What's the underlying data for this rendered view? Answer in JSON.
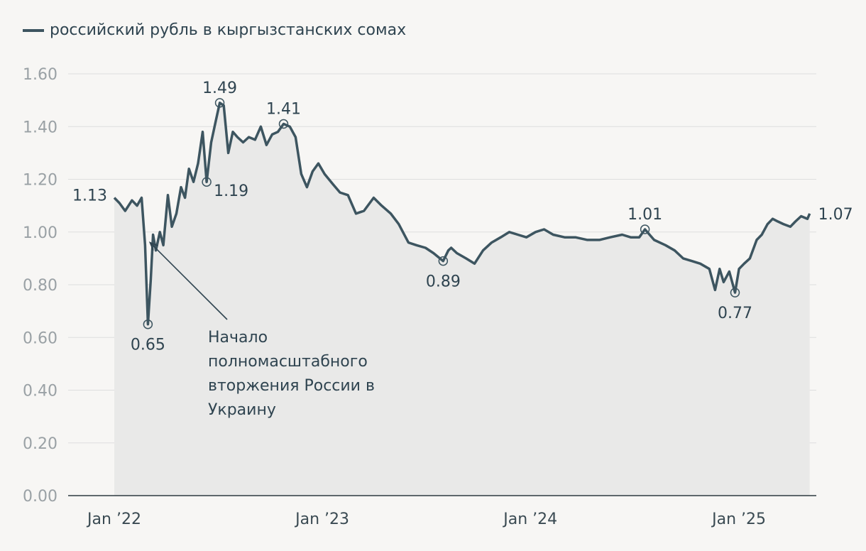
{
  "chart_data": {
    "type": "line",
    "title": "",
    "xlabel": "",
    "ylabel": "",
    "ylim": [
      0,
      1.6
    ],
    "yticks": [
      "0.00",
      "0.20",
      "0.40",
      "0.60",
      "0.80",
      "1.00",
      "1.20",
      "1.40",
      "1.60"
    ],
    "xticks": [
      {
        "label": "Jan ’22",
        "x": "2022-01-01"
      },
      {
        "label": "Jan ’23",
        "x": "2023-01-01"
      },
      {
        "label": "Jan ’24",
        "x": "2024-01-01"
      },
      {
        "label": "Jan ’25",
        "x": "2025-01-01"
      }
    ],
    "grid": true,
    "legend": "top-left",
    "series": [
      {
        "name": "российский рубль в кыргызстанских сомах",
        "color": "#3d5560",
        "x": [
          "2022-01-01",
          "2022-01-10",
          "2022-01-20",
          "2022-02-01",
          "2022-02-10",
          "2022-02-18",
          "2022-02-24",
          "2022-03-01",
          "2022-03-06",
          "2022-03-10",
          "2022-03-15",
          "2022-03-22",
          "2022-03-28",
          "2022-04-05",
          "2022-04-12",
          "2022-04-20",
          "2022-04-28",
          "2022-05-05",
          "2022-05-12",
          "2022-05-20",
          "2022-05-28",
          "2022-06-05",
          "2022-06-12",
          "2022-06-20",
          "2022-06-28",
          "2022-07-05",
          "2022-07-12",
          "2022-07-20",
          "2022-07-28",
          "2022-08-05",
          "2022-08-15",
          "2022-08-25",
          "2022-09-05",
          "2022-09-15",
          "2022-09-25",
          "2022-10-05",
          "2022-10-15",
          "2022-10-25",
          "2022-11-05",
          "2022-11-15",
          "2022-11-25",
          "2022-12-05",
          "2022-12-15",
          "2022-12-25",
          "2023-01-05",
          "2023-01-20",
          "2023-02-01",
          "2023-02-15",
          "2023-03-01",
          "2023-03-15",
          "2023-04-01",
          "2023-04-15",
          "2023-05-01",
          "2023-05-15",
          "2023-06-01",
          "2023-06-15",
          "2023-07-01",
          "2023-07-15",
          "2023-08-01",
          "2023-08-10",
          "2023-08-15",
          "2023-08-25",
          "2023-09-10",
          "2023-09-25",
          "2023-10-10",
          "2023-10-25",
          "2023-11-10",
          "2023-11-25",
          "2023-12-10",
          "2023-12-25",
          "2024-01-10",
          "2024-01-25",
          "2024-02-10",
          "2024-03-01",
          "2024-03-20",
          "2024-04-10",
          "2024-05-01",
          "2024-05-20",
          "2024-06-10",
          "2024-06-25",
          "2024-07-10",
          "2024-07-20",
          "2024-08-05",
          "2024-08-25",
          "2024-09-10",
          "2024-09-25",
          "2024-10-10",
          "2024-10-25",
          "2024-11-10",
          "2024-11-20",
          "2024-11-28",
          "2024-12-05",
          "2024-12-15",
          "2024-12-25",
          "2025-01-01",
          "2025-01-10",
          "2025-01-20",
          "2025-02-01",
          "2025-02-10",
          "2025-02-20",
          "2025-03-01",
          "2025-03-10",
          "2025-03-20",
          "2025-04-01",
          "2025-04-10",
          "2025-04-20",
          "2025-05-01",
          "2025-05-05"
        ],
        "values": [
          1.13,
          1.11,
          1.08,
          1.12,
          1.1,
          1.13,
          0.95,
          0.65,
          0.82,
          0.99,
          0.93,
          1.0,
          0.95,
          1.14,
          1.02,
          1.07,
          1.17,
          1.13,
          1.24,
          1.19,
          1.26,
          1.38,
          1.19,
          1.34,
          1.42,
          1.49,
          1.48,
          1.3,
          1.38,
          1.36,
          1.34,
          1.36,
          1.35,
          1.4,
          1.33,
          1.37,
          1.38,
          1.41,
          1.4,
          1.36,
          1.22,
          1.17,
          1.23,
          1.26,
          1.22,
          1.18,
          1.15,
          1.14,
          1.07,
          1.08,
          1.13,
          1.1,
          1.07,
          1.03,
          0.96,
          0.95,
          0.94,
          0.92,
          0.89,
          0.93,
          0.94,
          0.92,
          0.9,
          0.88,
          0.93,
          0.96,
          0.98,
          1.0,
          0.99,
          0.98,
          1.0,
          1.01,
          0.99,
          0.98,
          0.98,
          0.97,
          0.97,
          0.98,
          0.99,
          0.98,
          0.98,
          1.01,
          0.97,
          0.95,
          0.93,
          0.9,
          0.89,
          0.88,
          0.86,
          0.78,
          0.86,
          0.81,
          0.85,
          0.77,
          0.86,
          0.88,
          0.9,
          0.97,
          0.99,
          1.03,
          1.05,
          1.04,
          1.03,
          1.02,
          1.04,
          1.06,
          1.05,
          1.07
        ]
      }
    ],
    "annotations": [
      {
        "label": "1.13",
        "x": "2022-01-01",
        "y": 1.13,
        "pos": "left",
        "marker": false
      },
      {
        "label": "0.65",
        "x": "2022-03-01",
        "y": 0.65,
        "pos": "below",
        "marker": true
      },
      {
        "label": "1.49",
        "x": "2022-07-05",
        "y": 1.49,
        "pos": "above",
        "marker": true
      },
      {
        "label": "1.19",
        "x": "2022-06-12",
        "y": 1.19,
        "pos": "right",
        "marker": true
      },
      {
        "label": "1.41",
        "x": "2022-10-25",
        "y": 1.41,
        "pos": "above",
        "marker": true
      },
      {
        "label": "0.89",
        "x": "2023-08-01",
        "y": 0.89,
        "pos": "below",
        "marker": true
      },
      {
        "label": "1.01",
        "x": "2024-07-20",
        "y": 1.01,
        "pos": "above",
        "marker": true
      },
      {
        "label": "0.77",
        "x": "2024-12-25",
        "y": 0.77,
        "pos": "below",
        "marker": true
      },
      {
        "label": "1.07",
        "x": "2025-05-05",
        "y": 1.07,
        "pos": "right",
        "marker": false
      }
    ],
    "arrow_note": {
      "lines": [
        "Начало",
        "полномасштабного",
        "вторжения России в",
        "Украину"
      ],
      "x": "2022-03-01",
      "y": 0.96
    }
  },
  "colors": {
    "line": "#3d5560",
    "area": "#e9e9e8",
    "background": "#f7f6f4"
  }
}
